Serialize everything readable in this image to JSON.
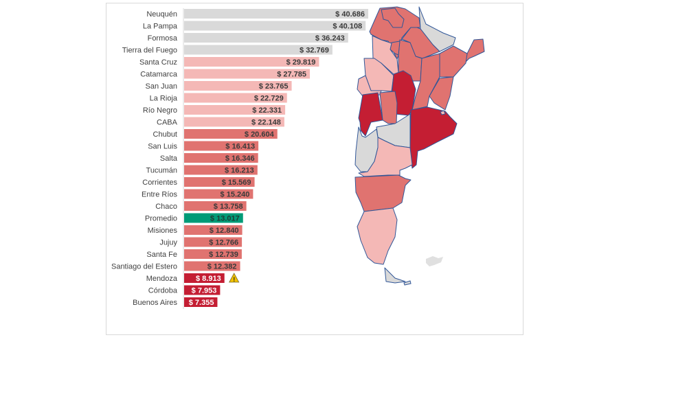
{
  "chart_data": {
    "type": "bar",
    "orientation": "horizontal",
    "title": "",
    "xlabel": "",
    "ylabel": "",
    "xlim": [
      0,
      40686
    ],
    "currency_prefix": "$ ",
    "categories": [
      "Neuquén",
      "La Pampa",
      "Formosa",
      "Tierra del Fuego",
      "Santa Cruz",
      "Catamarca",
      "San Juan",
      "La Rioja",
      "Río Negro",
      "CABA",
      "Chubut",
      "San Luis",
      "Salta",
      "Tucumán",
      "Corrientes",
      "Entre Ríos",
      "Chaco",
      "Promedio",
      "Misiones",
      "Jujuy",
      "Santa Fe",
      "Santiago del Estero",
      "Mendoza",
      "Córdoba",
      "Buenos Aires"
    ],
    "values": [
      40686,
      40108,
      36243,
      32769,
      29819,
      27785,
      23765,
      22729,
      22331,
      22148,
      20604,
      16413,
      16346,
      16213,
      15569,
      15240,
      13758,
      13017,
      12840,
      12766,
      12739,
      12382,
      8913,
      7953,
      7355
    ],
    "value_labels": [
      "$ 40.686",
      "$ 40.108",
      "$ 36.243",
      "$ 32.769",
      "$ 29.819",
      "$ 27.785",
      "$ 23.765",
      "$ 22.729",
      "$ 22.331",
      "$ 22.148",
      "$ 20.604",
      "$ 16.413",
      "$ 16.346",
      "$ 16.213",
      "$ 15.569",
      "$ 15.240",
      "$ 13.758",
      "$ 13.017",
      "$ 12.840",
      "$ 12.766",
      "$ 12.739",
      "$ 12.382",
      "$ 8.913",
      "$ 7.953",
      "$ 7.355"
    ],
    "tiers": [
      "gray",
      "gray",
      "gray",
      "gray",
      "light",
      "light",
      "light",
      "light",
      "light",
      "light",
      "mid",
      "mid",
      "mid",
      "mid",
      "mid",
      "mid",
      "mid",
      "avg",
      "mid",
      "mid",
      "mid",
      "mid",
      "dark",
      "dark",
      "dark"
    ],
    "warning_on": "Mendoza"
  },
  "colors": {
    "gray": "#d9d9d9",
    "light": "#f4b8b6",
    "mid": "#e07370",
    "dark": "#c41e33",
    "avg": "#009b77",
    "border": "#2f5597",
    "warning": "#f2c200"
  },
  "map": {
    "provinces": [
      {
        "name": "Salta",
        "tier": "mid"
      },
      {
        "name": "Jujuy",
        "tier": "mid"
      },
      {
        "name": "Formosa",
        "tier": "gray"
      },
      {
        "name": "Chaco",
        "tier": "mid"
      },
      {
        "name": "Santiago del Estero",
        "tier": "mid"
      },
      {
        "name": "Tucumán",
        "tier": "mid"
      },
      {
        "name": "Catamarca",
        "tier": "light"
      },
      {
        "name": "La Rioja",
        "tier": "light"
      },
      {
        "name": "San Juan",
        "tier": "light"
      },
      {
        "name": "Misiones",
        "tier": "mid"
      },
      {
        "name": "Corrientes",
        "tier": "mid"
      },
      {
        "name": "Entre Ríos",
        "tier": "mid"
      },
      {
        "name": "Santa Fe",
        "tier": "mid"
      },
      {
        "name": "Córdoba",
        "tier": "dark"
      },
      {
        "name": "San Luis",
        "tier": "mid"
      },
      {
        "name": "Mendoza",
        "tier": "dark"
      },
      {
        "name": "Buenos Aires",
        "tier": "dark"
      },
      {
        "name": "La Pampa",
        "tier": "gray"
      },
      {
        "name": "Neuquén",
        "tier": "gray"
      },
      {
        "name": "Río Negro",
        "tier": "light"
      },
      {
        "name": "Chubut",
        "tier": "mid"
      },
      {
        "name": "Santa Cruz",
        "tier": "light"
      },
      {
        "name": "Tierra del Fuego",
        "tier": "gray"
      },
      {
        "name": "CABA",
        "tier": "light"
      }
    ]
  }
}
